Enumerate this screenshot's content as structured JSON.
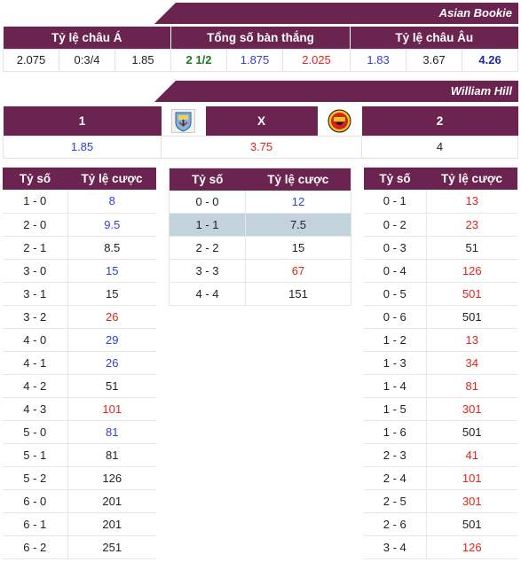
{
  "asian_banner": "Asian Bookie",
  "asian_headers": [
    "Tỷ lệ châu Á",
    "Tổng số bàn thắng",
    "Tỷ lệ châu Âu"
  ],
  "asian_values": [
    "2.075",
    "0:3/4",
    "1.85",
    "2 1/2",
    "1.875",
    "2.025",
    "1.83",
    "3.67",
    "4.26"
  ],
  "wh_banner": "William Hill",
  "wh_headers": [
    "1",
    "X",
    "2"
  ],
  "wh_values": [
    "1.85",
    "3.75",
    "4"
  ],
  "home_logo": "manchester-city-crest-icon",
  "away_logo": "manchester-united-crest-icon",
  "col_headers": {
    "score": "Tỷ số",
    "odds": "Tỷ lệ cược"
  },
  "home_wins": [
    {
      "score": "1 - 0",
      "odds": "8",
      "color": "blue"
    },
    {
      "score": "2 - 0",
      "odds": "9.5",
      "color": "blue"
    },
    {
      "score": "2 - 1",
      "odds": "8.5",
      "color": "black"
    },
    {
      "score": "3 - 0",
      "odds": "15",
      "color": "blue"
    },
    {
      "score": "3 - 1",
      "odds": "15",
      "color": "black"
    },
    {
      "score": "3 - 2",
      "odds": "26",
      "color": "red"
    },
    {
      "score": "4 - 0",
      "odds": "29",
      "color": "blue"
    },
    {
      "score": "4 - 1",
      "odds": "26",
      "color": "blue"
    },
    {
      "score": "4 - 2",
      "odds": "51",
      "color": "black"
    },
    {
      "score": "4 - 3",
      "odds": "101",
      "color": "red"
    },
    {
      "score": "5 - 0",
      "odds": "81",
      "color": "blue"
    },
    {
      "score": "5 - 1",
      "odds": "81",
      "color": "black"
    },
    {
      "score": "5 - 2",
      "odds": "126",
      "color": "black"
    },
    {
      "score": "6 - 0",
      "odds": "201",
      "color": "black"
    },
    {
      "score": "6 - 1",
      "odds": "201",
      "color": "black"
    },
    {
      "score": "6 - 2",
      "odds": "251",
      "color": "black"
    }
  ],
  "draws": [
    {
      "score": "0 - 0",
      "odds": "12",
      "color": "blue"
    },
    {
      "score": "1 - 1",
      "odds": "7.5",
      "color": "black",
      "highlight": true
    },
    {
      "score": "2 - 2",
      "odds": "15",
      "color": "black"
    },
    {
      "score": "3 - 3",
      "odds": "67",
      "color": "red"
    },
    {
      "score": "4 - 4",
      "odds": "151",
      "color": "black"
    }
  ],
  "away_wins": [
    {
      "score": "0 - 1",
      "odds": "13",
      "color": "red"
    },
    {
      "score": "0 - 2",
      "odds": "23",
      "color": "red"
    },
    {
      "score": "0 - 3",
      "odds": "51",
      "color": "black"
    },
    {
      "score": "0 - 4",
      "odds": "126",
      "color": "red"
    },
    {
      "score": "0 - 5",
      "odds": "501",
      "color": "red"
    },
    {
      "score": "0 - 6",
      "odds": "501",
      "color": "black"
    },
    {
      "score": "1 - 2",
      "odds": "13",
      "color": "red"
    },
    {
      "score": "1 - 3",
      "odds": "34",
      "color": "red"
    },
    {
      "score": "1 - 4",
      "odds": "81",
      "color": "red"
    },
    {
      "score": "1 - 5",
      "odds": "301",
      "color": "red"
    },
    {
      "score": "1 - 6",
      "odds": "501",
      "color": "black"
    },
    {
      "score": "2 - 3",
      "odds": "41",
      "color": "red"
    },
    {
      "score": "2 - 4",
      "odds": "101",
      "color": "red"
    },
    {
      "score": "2 - 5",
      "odds": "301",
      "color": "red"
    },
    {
      "score": "2 - 6",
      "odds": "501",
      "color": "black"
    },
    {
      "score": "3 - 4",
      "odds": "126",
      "color": "red"
    }
  ],
  "colors": {
    "primary": "#6b2350",
    "blue": "#2f3fd9",
    "red": "#e0241b",
    "highlight": "#c3d3de"
  }
}
